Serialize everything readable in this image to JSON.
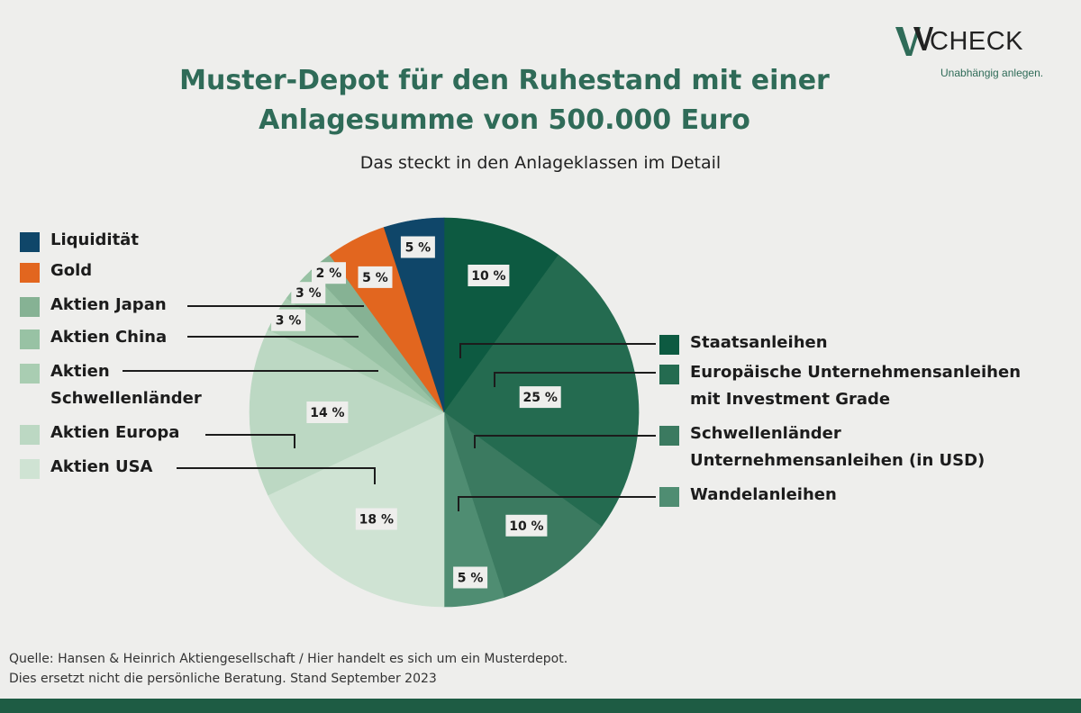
{
  "header": {
    "title_line1": "Muster-Depot für den Ruhestand mit einer",
    "title_line2": "Anlagesumme von 500.000 Euro",
    "subtitle": "Das steckt in den Anlageklassen im Detail"
  },
  "logo": {
    "name": "CHECK",
    "tagline": "Unabhängig anlegen."
  },
  "footer": {
    "line1": "Quelle: Hansen & Heinrich Aktiengesellschaft  / Hier handelt es sich um ein Musterdepot.",
    "line2": "Dies ersetzt nicht die persönliche Beratung. Stand September 2023"
  },
  "colors": {
    "title": "#2f6b58",
    "bottom_bar": "#1e5c44"
  },
  "chart_data": {
    "type": "pie",
    "unit": "%",
    "slices": [
      {
        "name": "Staatsanleihen",
        "value": 10,
        "label": "10 %",
        "color": "#0d5a41"
      },
      {
        "name": "Europäische Unternehmensanleihen mit Investment Grade",
        "value": 25,
        "label": "25 %",
        "color": "#246b50"
      },
      {
        "name": "Schwellenländer Unternehmensanleihen (in USD)",
        "value": 10,
        "label": "10 %",
        "color": "#3b7a60"
      },
      {
        "name": "Wandelanleihen",
        "value": 5,
        "label": "5 %",
        "color": "#4f8d72"
      },
      {
        "name": "Aktien USA",
        "value": 18,
        "label": "18 %",
        "color": "#cfe3d3"
      },
      {
        "name": "Aktien Europa",
        "value": 14,
        "label": "14 %",
        "color": "#bcd8c3"
      },
      {
        "name": "Aktien Schwellenländer",
        "value": 3,
        "label": "3 %",
        "color": "#a9cdb2"
      },
      {
        "name": "Aktien China",
        "value": 3,
        "label": "3 %",
        "color": "#98c2a4"
      },
      {
        "name": "Aktien Japan",
        "value": 2,
        "label": "2 %",
        "color": "#86b294"
      },
      {
        "name": "Gold",
        "value": 5,
        "label": "5 %",
        "color": "#e2661f"
      },
      {
        "name": "Liquidität",
        "value": 5,
        "label": "5 %",
        "color": "#0f4669"
      }
    ],
    "legend_left": [
      {
        "label": "Liquidität",
        "color": "#0f4669"
      },
      {
        "label": "Gold",
        "color": "#e2661f"
      },
      {
        "label": "Aktien Japan",
        "color": "#86b294"
      },
      {
        "label": "Aktien China",
        "color": "#98c2a4"
      },
      {
        "label": "Aktien Schwellenländer",
        "line1": "Aktien",
        "line2": "Schwellenländer",
        "color": "#a9cdb2"
      },
      {
        "label": "Aktien Europa",
        "color": "#bcd8c3"
      },
      {
        "label": "Aktien USA",
        "color": "#cfe3d3"
      }
    ],
    "legend_right": [
      {
        "label": "Staatsanleihen",
        "color": "#0d5a41"
      },
      {
        "label": "Europäische Unternehmensanleihen mit Investment Grade",
        "line1": "Europäische Unternehmensanleihen",
        "line2": "mit Investment Grade",
        "color": "#246b50"
      },
      {
        "label": "Schwellenländer Unternehmensanleihen (in USD)",
        "line1": "Schwellenländer",
        "line2": "Unternehmensanleihen (in USD)",
        "color": "#3b7a60"
      },
      {
        "label": "Wandelanleihen",
        "color": "#4f8d72"
      }
    ]
  }
}
